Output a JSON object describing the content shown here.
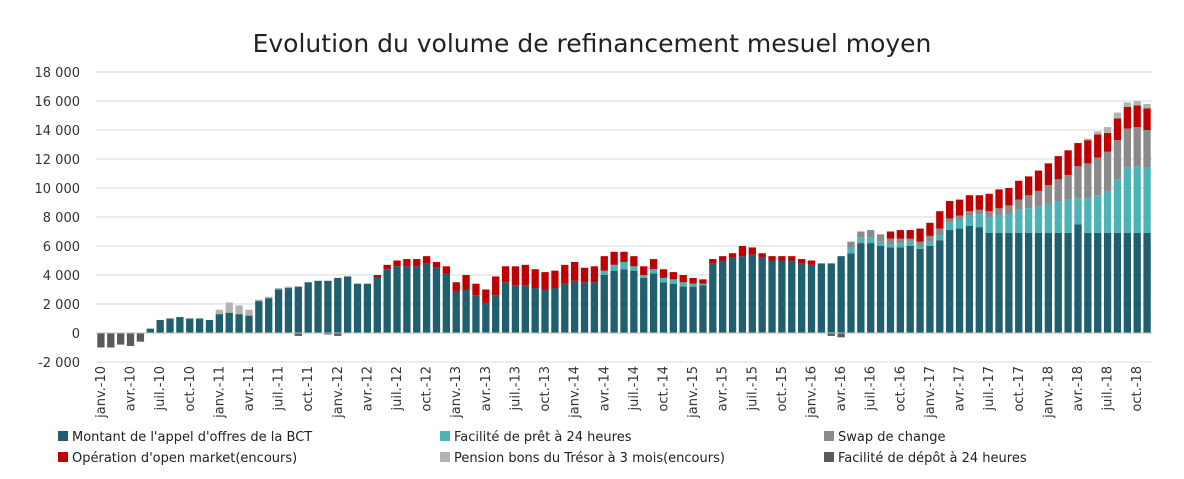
{
  "chart_data": {
    "type": "bar",
    "stacked": true,
    "title": "Evolution du volume de refinancement mesuel moyen",
    "xlabel": "",
    "ylabel": "",
    "ylim": [
      -2000,
      18000
    ],
    "yticks": [
      -2000,
      0,
      2000,
      4000,
      6000,
      8000,
      10000,
      12000,
      14000,
      16000,
      18000
    ],
    "ytick_labels": [
      "-2 000",
      "0",
      "2 000",
      "4 000",
      "6 000",
      "8 000",
      "10 000",
      "12 000",
      "14 000",
      "16 000",
      "18 000"
    ],
    "grid": "horizontal",
    "legend_position": "bottom",
    "x_tick_labels": [
      "janv.-10",
      "avr.-10",
      "juil.-10",
      "oct.-10",
      "janv.-11",
      "avr.-11",
      "juil.-11",
      "oct.-11",
      "janv.-12",
      "avr.-12",
      "juil.-12",
      "oct.-12",
      "janv.-13",
      "avr.-13",
      "juil.-13",
      "oct.-13",
      "janv.-14",
      "avr.-14",
      "juil.-14",
      "oct.-14",
      "janv.-15",
      "avr.-15",
      "juil.-15",
      "oct.-15",
      "janv.-16",
      "avr.-16",
      "juil.-16",
      "oct.-16",
      "janv.-17",
      "avr.-17",
      "juil.-17",
      "oct.-17",
      "janv.-18",
      "avr.-18",
      "juil.-18",
      "oct.-18"
    ],
    "series": [
      {
        "name": "Montant de l'appel d'offres de la BCT",
        "color": "#1f5f6e",
        "values": [
          0,
          0,
          0,
          0,
          0,
          300,
          900,
          1000,
          1100,
          1000,
          1000,
          900,
          1300,
          1400,
          1300,
          1200,
          2200,
          2400,
          3000,
          3100,
          3200,
          3500,
          3600,
          3600,
          3800,
          3900,
          3400,
          3400,
          3800,
          4400,
          4600,
          4600,
          4600,
          4800,
          4500,
          4100,
          2900,
          3000,
          2600,
          2100,
          2600,
          3500,
          3300,
          3300,
          3100,
          3000,
          3100,
          3400,
          3600,
          3500,
          3500,
          4000,
          4300,
          4400,
          4300,
          3800,
          4100,
          3500,
          3400,
          3200,
          3200,
          3300,
          4800,
          5000,
          5200,
          5300,
          5400,
          5200,
          5000,
          5000,
          5000,
          4800,
          4700,
          4800,
          4800,
          5300,
          5500,
          6200,
          6200,
          6000,
          5900,
          5900,
          6000,
          5800,
          6000,
          6400,
          7100,
          7200,
          7400,
          7300,
          6900,
          6900,
          6900,
          6900,
          6900,
          6900,
          6900,
          6900,
          6900,
          7500,
          6900,
          6900,
          6900,
          6900,
          6900,
          6900,
          6900
        ]
      },
      {
        "name": "Facilité de prêt à 24 heures",
        "color": "#4db3b6",
        "values": [
          0,
          0,
          0,
          0,
          0,
          0,
          0,
          0,
          0,
          0,
          0,
          0,
          0,
          0,
          0,
          0,
          0,
          0,
          0,
          0,
          0,
          0,
          0,
          0,
          0,
          0,
          0,
          0,
          0,
          0,
          0,
          0,
          0,
          0,
          0,
          0,
          0,
          0,
          0,
          0,
          0,
          0,
          0,
          0,
          0,
          0,
          0,
          0,
          0,
          0,
          0,
          300,
          400,
          500,
          300,
          200,
          300,
          300,
          300,
          300,
          200,
          100,
          0,
          0,
          0,
          0,
          0,
          0,
          0,
          0,
          0,
          0,
          0,
          0,
          0,
          0,
          400,
          400,
          400,
          300,
          200,
          300,
          300,
          200,
          300,
          300,
          500,
          600,
          700,
          900,
          1100,
          1200,
          1300,
          1600,
          1700,
          1800,
          2000,
          2200,
          2300,
          1800,
          2400,
          2600,
          2900,
          3700,
          4500,
          4600,
          4500
        ]
      },
      {
        "name": "Swap de change",
        "color": "#8a8a8a",
        "values": [
          0,
          0,
          0,
          0,
          0,
          0,
          0,
          0,
          0,
          0,
          0,
          0,
          0,
          0,
          0,
          0,
          0,
          0,
          0,
          0,
          0,
          0,
          0,
          0,
          0,
          0,
          0,
          0,
          0,
          0,
          0,
          0,
          0,
          0,
          0,
          0,
          0,
          0,
          0,
          0,
          0,
          0,
          0,
          0,
          0,
          0,
          0,
          0,
          0,
          0,
          0,
          0,
          0,
          0,
          0,
          0,
          0,
          0,
          0,
          0,
          0,
          0,
          0,
          0,
          0,
          0,
          0,
          0,
          0,
          0,
          0,
          0,
          0,
          0,
          0,
          0,
          400,
          400,
          500,
          500,
          400,
          300,
          200,
          300,
          400,
          500,
          300,
          300,
          300,
          300,
          400,
          500,
          600,
          700,
          900,
          1100,
          1300,
          1500,
          1700,
          2200,
          2400,
          2600,
          2700,
          2700,
          2700,
          2700,
          2600
        ]
      },
      {
        "name": "Opération d'open market(encours)",
        "color": "#c00000",
        "values": [
          0,
          0,
          0,
          0,
          0,
          0,
          0,
          0,
          0,
          0,
          0,
          0,
          0,
          0,
          0,
          0,
          0,
          0,
          0,
          0,
          0,
          0,
          0,
          0,
          0,
          0,
          0,
          0,
          200,
          300,
          400,
          500,
          500,
          500,
          400,
          500,
          600,
          1000,
          800,
          900,
          1300,
          1100,
          1300,
          1400,
          1300,
          1200,
          1200,
          1300,
          1300,
          1000,
          1100,
          1000,
          900,
          700,
          700,
          600,
          700,
          600,
          500,
          500,
          400,
          300,
          300,
          300,
          300,
          700,
          500,
          300,
          300,
          300,
          300,
          300,
          300,
          0,
          0,
          0,
          0,
          0,
          0,
          0,
          500,
          600,
          600,
          900,
          900,
          1200,
          1200,
          1100,
          1100,
          1000,
          1200,
          1300,
          1200,
          1300,
          1300,
          1400,
          1500,
          1600,
          1700,
          1600,
          1600,
          1600,
          1300,
          1500,
          1500,
          1500,
          1500
        ]
      },
      {
        "name": "Pension bons du Trésor à 3 mois(encours)",
        "color": "#b3b3b3",
        "values": [
          0,
          0,
          0,
          0,
          0,
          0,
          0,
          0,
          0,
          0,
          0,
          0,
          300,
          700,
          600,
          400,
          100,
          100,
          100,
          100,
          0,
          0,
          0,
          0,
          0,
          0,
          0,
          0,
          0,
          0,
          0,
          0,
          0,
          0,
          0,
          0,
          0,
          0,
          0,
          0,
          0,
          0,
          0,
          0,
          0,
          0,
          0,
          0,
          0,
          0,
          0,
          0,
          0,
          0,
          0,
          0,
          0,
          0,
          0,
          0,
          0,
          0,
          0,
          0,
          0,
          0,
          0,
          0,
          0,
          0,
          0,
          0,
          0,
          0,
          0,
          0,
          0,
          0,
          0,
          0,
          0,
          0,
          0,
          0,
          0,
          0,
          0,
          0,
          0,
          0,
          0,
          0,
          0,
          0,
          0,
          0,
          0,
          0,
          0,
          0,
          100,
          200,
          400,
          400,
          300,
          300,
          300
        ]
      },
      {
        "name": "Facilité de dépôt à 24 heures",
        "color": "#5a5a5a",
        "values": [
          -1000,
          -1000,
          -800,
          -900,
          -600,
          0,
          0,
          0,
          0,
          0,
          0,
          0,
          0,
          0,
          0,
          0,
          0,
          0,
          0,
          0,
          -200,
          0,
          0,
          -100,
          -200,
          0,
          0,
          0,
          0,
          0,
          0,
          0,
          0,
          0,
          0,
          0,
          0,
          0,
          0,
          0,
          0,
          0,
          0,
          0,
          0,
          0,
          0,
          0,
          0,
          0,
          0,
          0,
          0,
          0,
          0,
          0,
          0,
          0,
          0,
          0,
          0,
          0,
          0,
          0,
          0,
          0,
          0,
          0,
          0,
          0,
          0,
          0,
          0,
          0,
          -200,
          -300,
          0,
          0,
          0,
          0,
          0,
          0,
          0,
          0,
          0,
          0,
          0,
          0,
          0,
          0,
          0,
          0,
          0,
          0,
          0,
          0,
          0,
          0,
          0,
          0,
          0,
          0,
          0,
          0,
          0,
          0,
          0
        ]
      }
    ]
  }
}
